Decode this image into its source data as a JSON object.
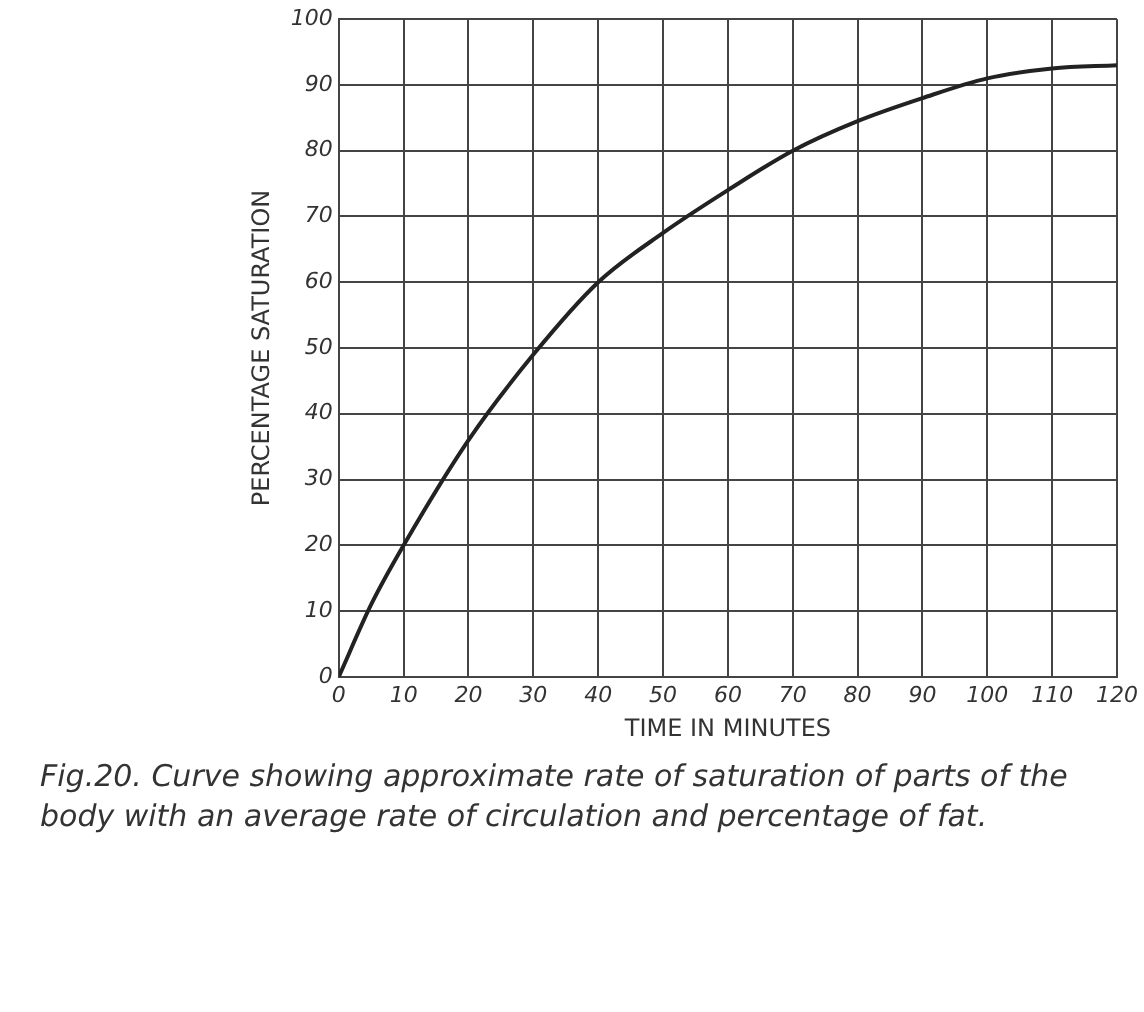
{
  "chart_data": {
    "type": "line",
    "xlabel": "TIME IN MINUTES",
    "ylabel": "PERCENTAGE SATURATION",
    "annotations": [
      "Fig.20. Curve showing approximate rate of saturation of parts of the body with an average rate of circulation and percentage of fat."
    ],
    "x": [
      0,
      5,
      10,
      20,
      30,
      40,
      50,
      60,
      70,
      80,
      90,
      100,
      110,
      120
    ],
    "series": [
      {
        "color": "#222222",
        "values": [
          0,
          11,
          20,
          36,
          49,
          60,
          67.5,
          74,
          80,
          84.5,
          88,
          91,
          92.5,
          93
        ]
      }
    ],
    "xlim": [
      0,
      120
    ],
    "xticks": [
      0,
      10,
      20,
      30,
      40,
      50,
      60,
      70,
      80,
      90,
      100,
      110,
      120
    ],
    "ylim": [
      0,
      100
    ],
    "yticks": [
      0,
      10,
      20,
      30,
      40,
      50,
      60,
      70,
      80,
      90,
      100
    ],
    "grid": true,
    "legend": false,
    "marker": "none",
    "line_style": "solid"
  }
}
